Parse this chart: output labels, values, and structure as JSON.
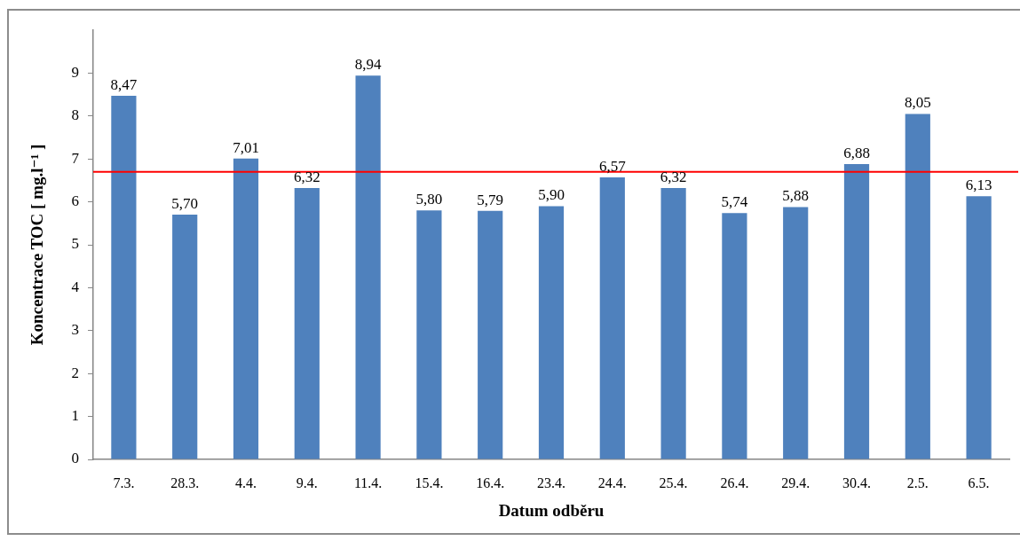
{
  "chart_data": {
    "type": "bar",
    "xlabel": "Datum odběru",
    "ylabel": "Koncentrace TOC [ mg.l⁻¹ ]",
    "categories": [
      "7.3.",
      "28.3.",
      "4.4.",
      "9.4.",
      "11.4.",
      "15.4.",
      "16.4.",
      "23.4.",
      "24.4.",
      "25.4.",
      "26.4.",
      "29.4.",
      "30.4.",
      "2.5.",
      "6.5."
    ],
    "values": [
      8.47,
      5.7,
      7.01,
      6.32,
      8.94,
      5.8,
      5.79,
      5.9,
      6.57,
      6.32,
      5.74,
      5.88,
      6.88,
      8.05,
      6.13
    ],
    "value_labels": [
      "8,47",
      "5,70",
      "7,01",
      "6,32",
      "8,94",
      "5,80",
      "5,79",
      "5,90",
      "6,57",
      "6,32",
      "5,74",
      "5,88",
      "6,88",
      "8,05",
      "6,13"
    ],
    "color": "#4f81bd",
    "ylim": [
      0,
      10
    ],
    "yticks": [
      0,
      1,
      2,
      3,
      4,
      5,
      6,
      7,
      8,
      9
    ],
    "grid": false,
    "ref_lines": [
      {
        "axis": "y",
        "value": 6.7,
        "color": "#ff0000"
      }
    ]
  }
}
